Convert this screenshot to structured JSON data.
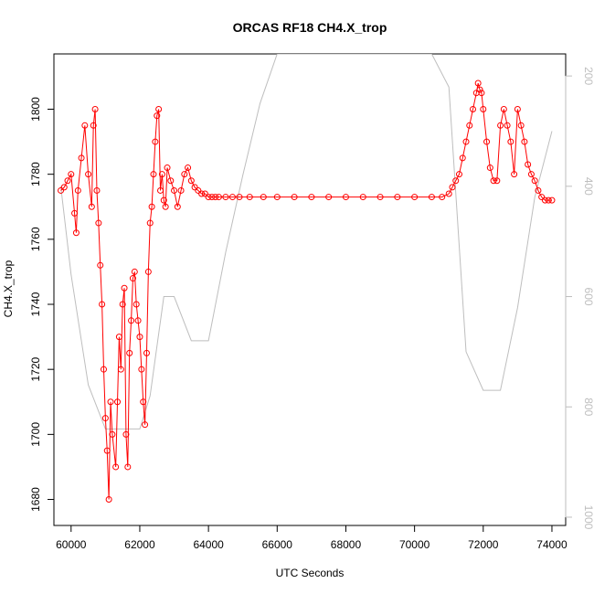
{
  "chart_data": {
    "type": "line",
    "title": "ORCAS RF18 CH4.X_trop",
    "xlabel": "UTC Seconds",
    "ylabel": "CH4.X_trop",
    "xlim": [
      59500,
      74400
    ],
    "ylim": [
      1672,
      1817
    ],
    "x_ticks": [
      60000,
      62000,
      64000,
      66000,
      68000,
      70000,
      72000,
      74000
    ],
    "y_ticks": [
      1680,
      1700,
      1720,
      1740,
      1760,
      1780,
      1800
    ],
    "y2_lim": [
      1015,
      160
    ],
    "y2_ticks": [
      200,
      400,
      600,
      800,
      1000
    ],
    "y2_reversed": true,
    "colors": {
      "series": "#ff0000",
      "secondary": "#bebebe",
      "axis": "#000000"
    },
    "series": [
      {
        "style": "points-with-lines",
        "color": "#ff0000",
        "x": [
          59700,
          59800,
          59900,
          60000,
          60100,
          60150,
          60200,
          60300,
          60400,
          60500,
          60600,
          60650,
          60700,
          60750,
          60800,
          60850,
          60900,
          60950,
          61000,
          61050,
          61100,
          61150,
          61200,
          61300,
          61350,
          61400,
          61450,
          61500,
          61550,
          61600,
          61650,
          61700,
          61750,
          61800,
          61850,
          61900,
          61950,
          62000,
          62050,
          62100,
          62150,
          62200,
          62250,
          62300,
          62350,
          62400,
          62450,
          62500,
          62550,
          62600,
          62650,
          62700,
          62750,
          62800,
          62900,
          63000,
          63100,
          63200,
          63300,
          63400,
          63500,
          63600,
          63700,
          63800,
          63900,
          64000,
          64100,
          64200,
          64300,
          64500,
          64700,
          64900,
          65200,
          65600,
          66000,
          66500,
          67000,
          67500,
          68000,
          68500,
          69000,
          69500,
          70000,
          70500,
          70800,
          71000,
          71100,
          71200,
          71300,
          71400,
          71500,
          71600,
          71700,
          71800,
          71850,
          71900,
          71950,
          72000,
          72100,
          72200,
          72300,
          72400,
          72500,
          72600,
          72700,
          72800,
          72900,
          73000,
          73100,
          73200,
          73300,
          73400,
          73500,
          73600,
          73700,
          73800,
          73900,
          74000
        ],
        "y": [
          1775,
          1776,
          1778,
          1780,
          1768,
          1762,
          1775,
          1785,
          1795,
          1780,
          1770,
          1795,
          1800,
          1775,
          1765,
          1752,
          1740,
          1720,
          1705,
          1695,
          1680,
          1710,
          1700,
          1690,
          1710,
          1730,
          1720,
          1740,
          1745,
          1700,
          1690,
          1725,
          1735,
          1748,
          1750,
          1740,
          1735,
          1730,
          1720,
          1710,
          1703,
          1725,
          1750,
          1765,
          1770,
          1780,
          1790,
          1798,
          1800,
          1775,
          1780,
          1772,
          1770,
          1782,
          1778,
          1775,
          1770,
          1775,
          1780,
          1782,
          1778,
          1776,
          1775,
          1774,
          1774,
          1773,
          1773,
          1773,
          1773,
          1773,
          1773,
          1773,
          1773,
          1773,
          1773,
          1773,
          1773,
          1773,
          1773,
          1773,
          1773,
          1773,
          1773,
          1773,
          1773,
          1774,
          1776,
          1778,
          1780,
          1785,
          1790,
          1795,
          1800,
          1805,
          1808,
          1806,
          1805,
          1800,
          1790,
          1782,
          1778,
          1778,
          1795,
          1800,
          1795,
          1790,
          1780,
          1800,
          1795,
          1790,
          1783,
          1780,
          1778,
          1775,
          1773,
          1772,
          1772,
          1772
        ]
      },
      {
        "style": "line",
        "color": "#bebebe",
        "axis": "right",
        "x": [
          59700,
          60000,
          60500,
          61000,
          61500,
          62000,
          62300,
          62700,
          63000,
          63500,
          64000,
          64500,
          65000,
          65500,
          66000,
          66500,
          67000,
          67500,
          68000,
          68500,
          69000,
          69500,
          70000,
          70500,
          71000,
          71500,
          72000,
          72500,
          73000,
          73500,
          74000
        ],
        "y": [
          400,
          560,
          760,
          840,
          840,
          840,
          780,
          600,
          600,
          680,
          680,
          520,
          380,
          250,
          160,
          160,
          160,
          160,
          160,
          160,
          160,
          160,
          160,
          160,
          220,
          700,
          770,
          770,
          620,
          420,
          300
        ]
      }
    ]
  }
}
